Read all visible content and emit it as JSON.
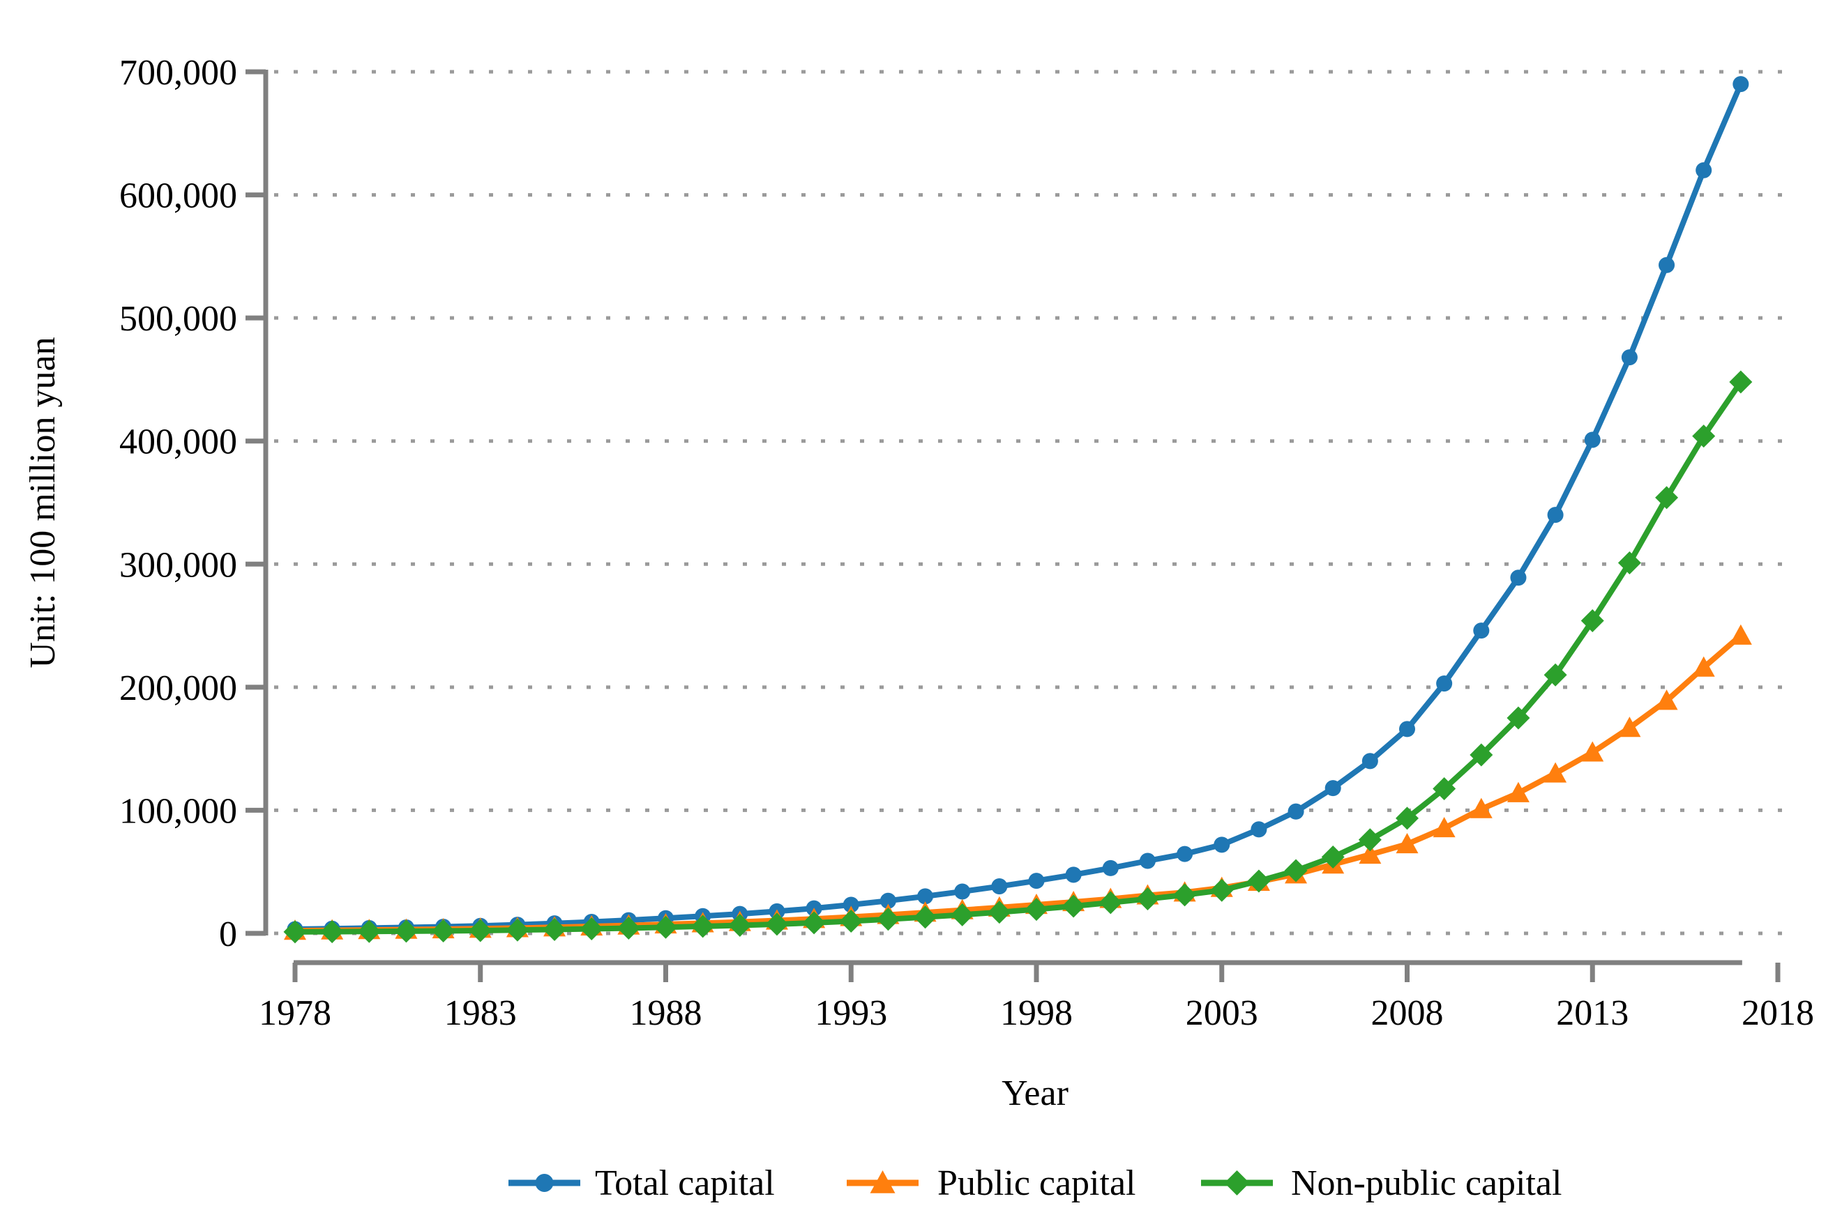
{
  "chart_data": {
    "type": "line",
    "title": "",
    "xlabel": "Year",
    "ylabel": "Unit: 100 million yuan",
    "xlim": [
      1978,
      2018
    ],
    "ylim": [
      0,
      700000
    ],
    "grid": "horizontal-dotted",
    "legend_position": "bottom-center",
    "x_ticks": [
      1978,
      1983,
      1988,
      1993,
      1998,
      2003,
      2008,
      2013,
      2018
    ],
    "y_ticks": [
      0,
      100000,
      200000,
      300000,
      400000,
      500000,
      600000,
      700000
    ],
    "y_tick_labels": [
      "0",
      "100,000",
      "200,000",
      "300,000",
      "400,000",
      "500,000",
      "600,000",
      "700,000"
    ],
    "x": [
      1978,
      1979,
      1980,
      1981,
      1982,
      1983,
      1984,
      1985,
      1986,
      1987,
      1988,
      1989,
      1990,
      1991,
      1992,
      1993,
      1994,
      1995,
      1996,
      1997,
      1998,
      1999,
      2000,
      2001,
      2002,
      2003,
      2004,
      2005,
      2006,
      2007,
      2008,
      2009,
      2010,
      2011,
      2012,
      2013,
      2014,
      2015,
      2016,
      2017
    ],
    "series": [
      {
        "name": "Total capital",
        "color": "#1f77b4",
        "marker": "circle",
        "values": [
          3400,
          3800,
          4300,
          4800,
          5400,
          6100,
          7000,
          8100,
          9300,
          10700,
          12300,
          14000,
          15800,
          17900,
          20300,
          23200,
          26500,
          30100,
          34000,
          38200,
          42700,
          47600,
          53000,
          58900,
          64500,
          72000,
          84500,
          99000,
          118000,
          140000,
          166000,
          203000,
          246000,
          289000,
          340000,
          401000,
          468000,
          543000,
          620000,
          690000
        ]
      },
      {
        "name": "Public capital",
        "color": "#ff7f0e",
        "marker": "triangle",
        "values": [
          2200,
          2450,
          2750,
          3050,
          3400,
          3800,
          4300,
          4950,
          5650,
          6450,
          7350,
          8300,
          9300,
          10450,
          11750,
          13300,
          15000,
          16900,
          18900,
          21000,
          23200,
          25500,
          28000,
          30900,
          33300,
          37000,
          42000,
          48000,
          56000,
          64000,
          72500,
          85500,
          101000,
          114000,
          130000,
          147000,
          167000,
          189000,
          216000,
          242000
        ]
      },
      {
        "name": "Non-public capital",
        "color": "#2ca02c",
        "marker": "diamond",
        "values": [
          1200,
          1350,
          1550,
          1750,
          2000,
          2300,
          2700,
          3150,
          3650,
          4250,
          4950,
          5700,
          6500,
          7450,
          8550,
          9900,
          11500,
          13200,
          15100,
          17200,
          19500,
          22100,
          25000,
          28000,
          31200,
          35000,
          42500,
          51000,
          62000,
          76000,
          93500,
          117500,
          145000,
          175000,
          210000,
          254000,
          301000,
          354000,
          404000,
          448000
        ]
      }
    ]
  },
  "colors": {
    "axis": "#808080",
    "grid": "#9a9a9a",
    "text": "#000000",
    "background": "#ffffff"
  }
}
